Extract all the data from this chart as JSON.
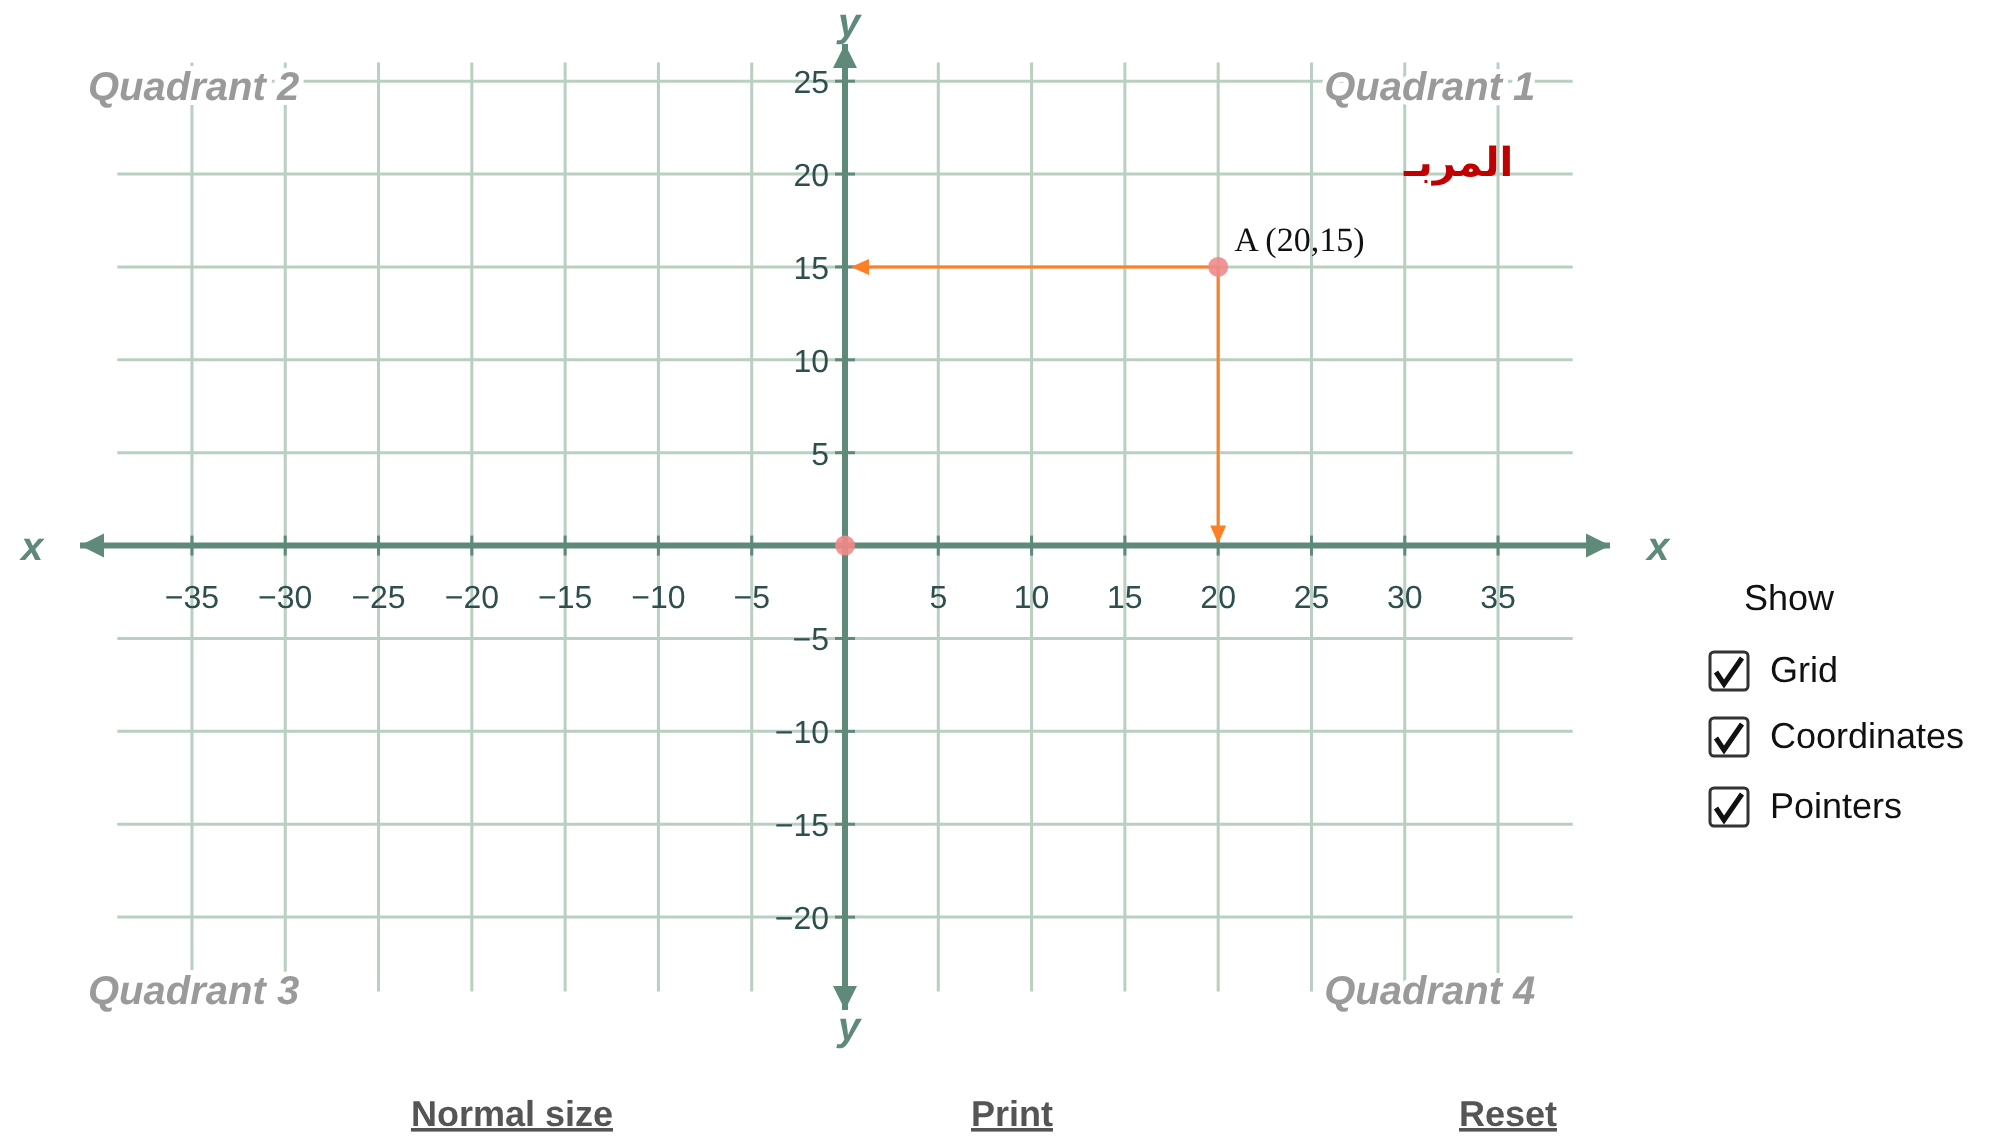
{
  "chart_data": {
    "type": "scatter",
    "xlabel": "x",
    "ylabel": "y",
    "x": [
      0,
      20
    ],
    "series": [
      {
        "color": "#f08a8a",
        "values": [
          0,
          15
        ]
      }
    ],
    "xlim": [
      -41,
      41
    ],
    "ylim": [
      -25,
      27
    ],
    "xticks": [
      -35,
      -30,
      -25,
      -20,
      -15,
      -10,
      -5,
      {
        "value": 0,
        "label": null
      },
      5,
      10,
      15,
      20,
      25,
      30,
      35
    ],
    "yticks": [
      -20,
      -15,
      -10,
      -5,
      {
        "value": 0,
        "label": null
      },
      5,
      10,
      15,
      20,
      25
    ],
    "grid": true,
    "marker": "circle",
    "annotations": [
      {
        "text": "A (20,15)",
        "x": 20,
        "y": 15
      },
      "Quadrant 1",
      "Quadrant 2",
      "Quadrant 3",
      "Quadrant 4",
      "المربـ",
      "Show",
      "Grid",
      "Coordinates",
      "Pointers",
      "Normal size",
      "Print",
      "Reset"
    ]
  }
}
